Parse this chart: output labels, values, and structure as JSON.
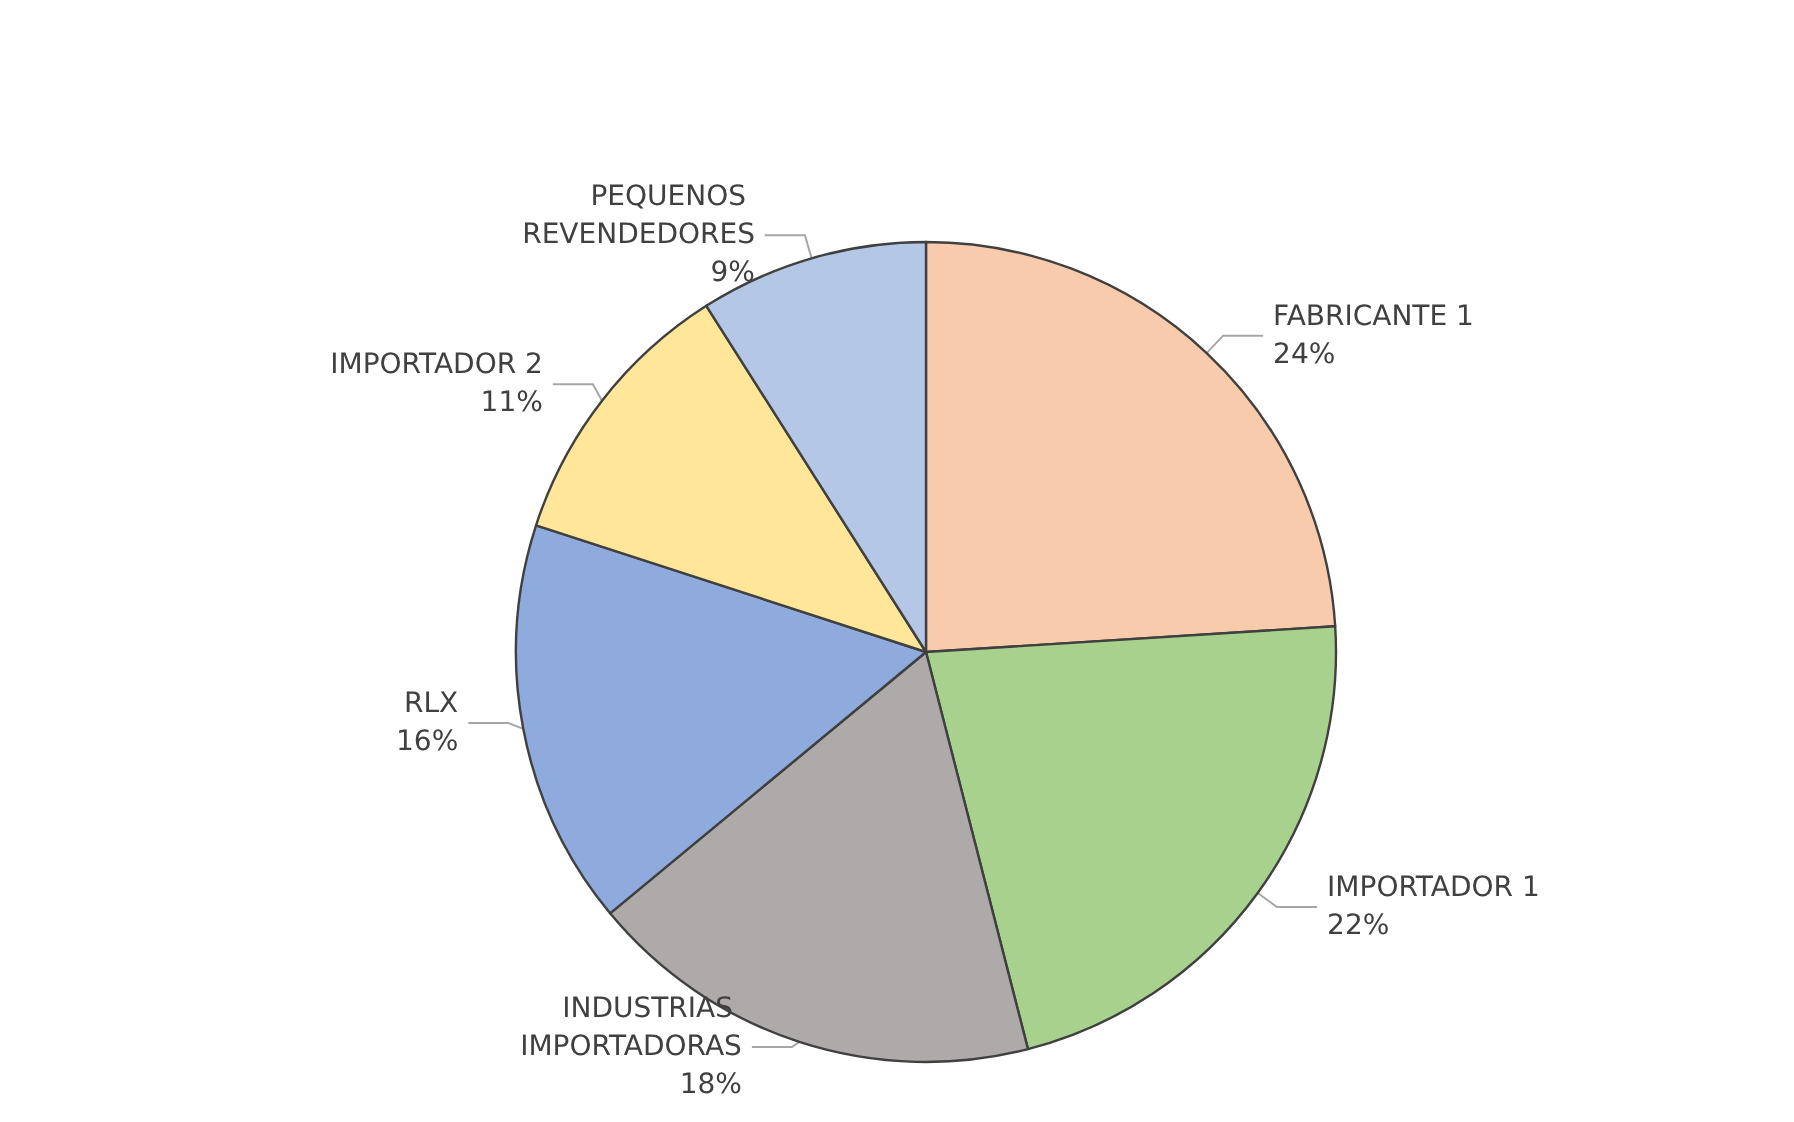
{
  "chart_data": {
    "type": "pie",
    "categories": [
      "FABRICANTE 1",
      "IMPORTADOR 1",
      "INDUSTRIAS IMPORTADORAS",
      "RLX",
      "IMPORTADOR 2",
      "PEQUENOS REVENDEDORES"
    ],
    "values": [
      24,
      22,
      18,
      16,
      11,
      9
    ],
    "colors": [
      "#f8cbad",
      "#a9d18e",
      "#aeaaaa",
      "#8faadc",
      "#ffe699",
      "#b4c7e7"
    ],
    "value_labels": [
      "24%",
      "22%",
      "18%",
      "16%",
      "11%",
      "9%"
    ],
    "legend": false
  }
}
